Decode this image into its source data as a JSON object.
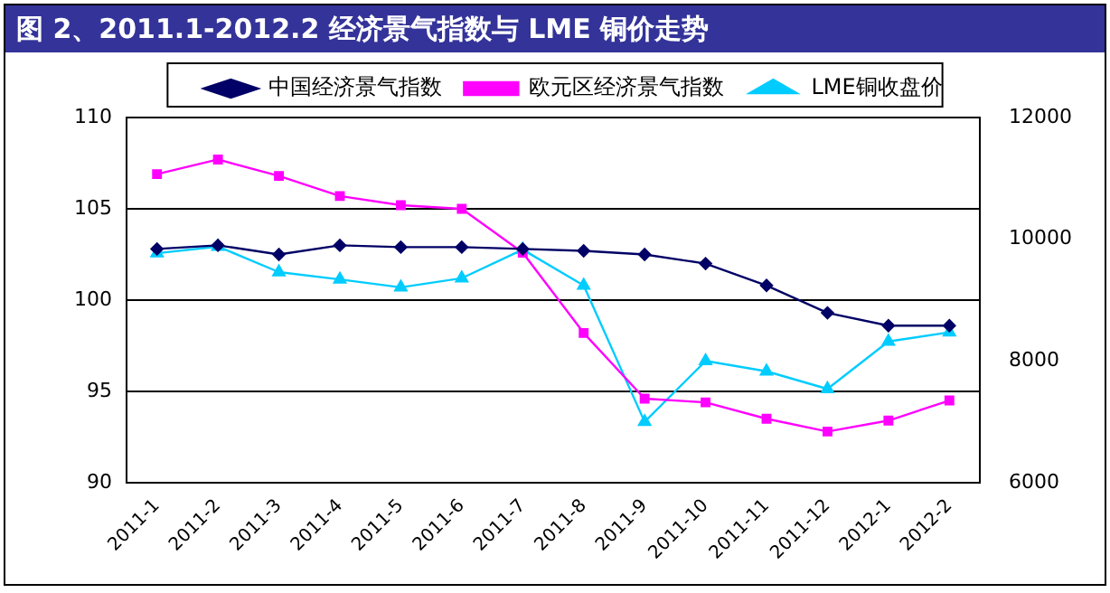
{
  "chart_data": {
    "type": "line",
    "title": "图 2、2011.1-2012.2 经济景气指数与 LME 铜价走势",
    "categories": [
      "2011-1",
      "2011-2",
      "2011-3",
      "2011-4",
      "2011-5",
      "2011-6",
      "2011-7",
      "2011-8",
      "2011-9",
      "2011-10",
      "2011-11",
      "2011-12",
      "2012-1",
      "2012-2"
    ],
    "series": [
      {
        "name": "中国经济景气指数",
        "color": "#000066",
        "marker": "diamond",
        "values": [
          102.8,
          103.0,
          102.5,
          103.0,
          102.9,
          102.9,
          102.8,
          102.7,
          102.5,
          102.0,
          100.8,
          99.3,
          98.6,
          98.6
        ]
      },
      {
        "name": "欧元区经济景气指数",
        "color": "#ff00ff",
        "marker": "square",
        "values": [
          106.9,
          107.7,
          106.8,
          105.7,
          105.2,
          105.0,
          102.6,
          98.2,
          94.6,
          94.4,
          93.5,
          92.8,
          93.4,
          94.5
        ]
      },
      {
        "name": "LME铜收盘价",
        "color": "#00ccff",
        "marker": "triangle",
        "axis": "y2",
        "values": [
          9770,
          9880,
          9460,
          9340,
          9210,
          9360,
          9830,
          9240,
          7000,
          8000,
          7830,
          7540,
          8320,
          8470
        ]
      }
    ],
    "ylim": [
      90,
      110
    ],
    "yticks": [
      90,
      95,
      100,
      105,
      110
    ],
    "y2lim": [
      6000,
      12000
    ],
    "y2ticks": [
      6000,
      8000,
      10000,
      12000
    ],
    "grid": "y",
    "legend": "top",
    "line_style": "solid"
  }
}
